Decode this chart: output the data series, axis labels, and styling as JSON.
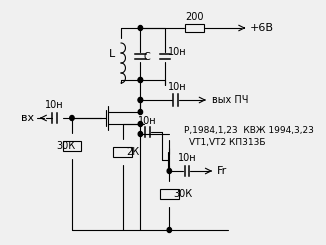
{
  "background_color": "#f0f0f0",
  "line_color": "#000000",
  "dot_color": "#000000",
  "font_size": 7,
  "title": "",
  "labels": {
    "vcc": "+6B",
    "r200": "200",
    "L": "L",
    "C": "C",
    "cap_top": "10н",
    "cap_out": "10н",
    "cap_in": "10н",
    "cap_mid": "10н",
    "cap_fr": "10н",
    "r30k_left": "30К",
    "r2k": "2К",
    "r30k_right": "30К",
    "vx": "вх",
    "fr": "Fr",
    "vikh": "вых ПЧ",
    "info1": "Р,1984,1,23  КВЖ 1994,3,23",
    "info2": "VT1,VT2 КП313Б"
  }
}
